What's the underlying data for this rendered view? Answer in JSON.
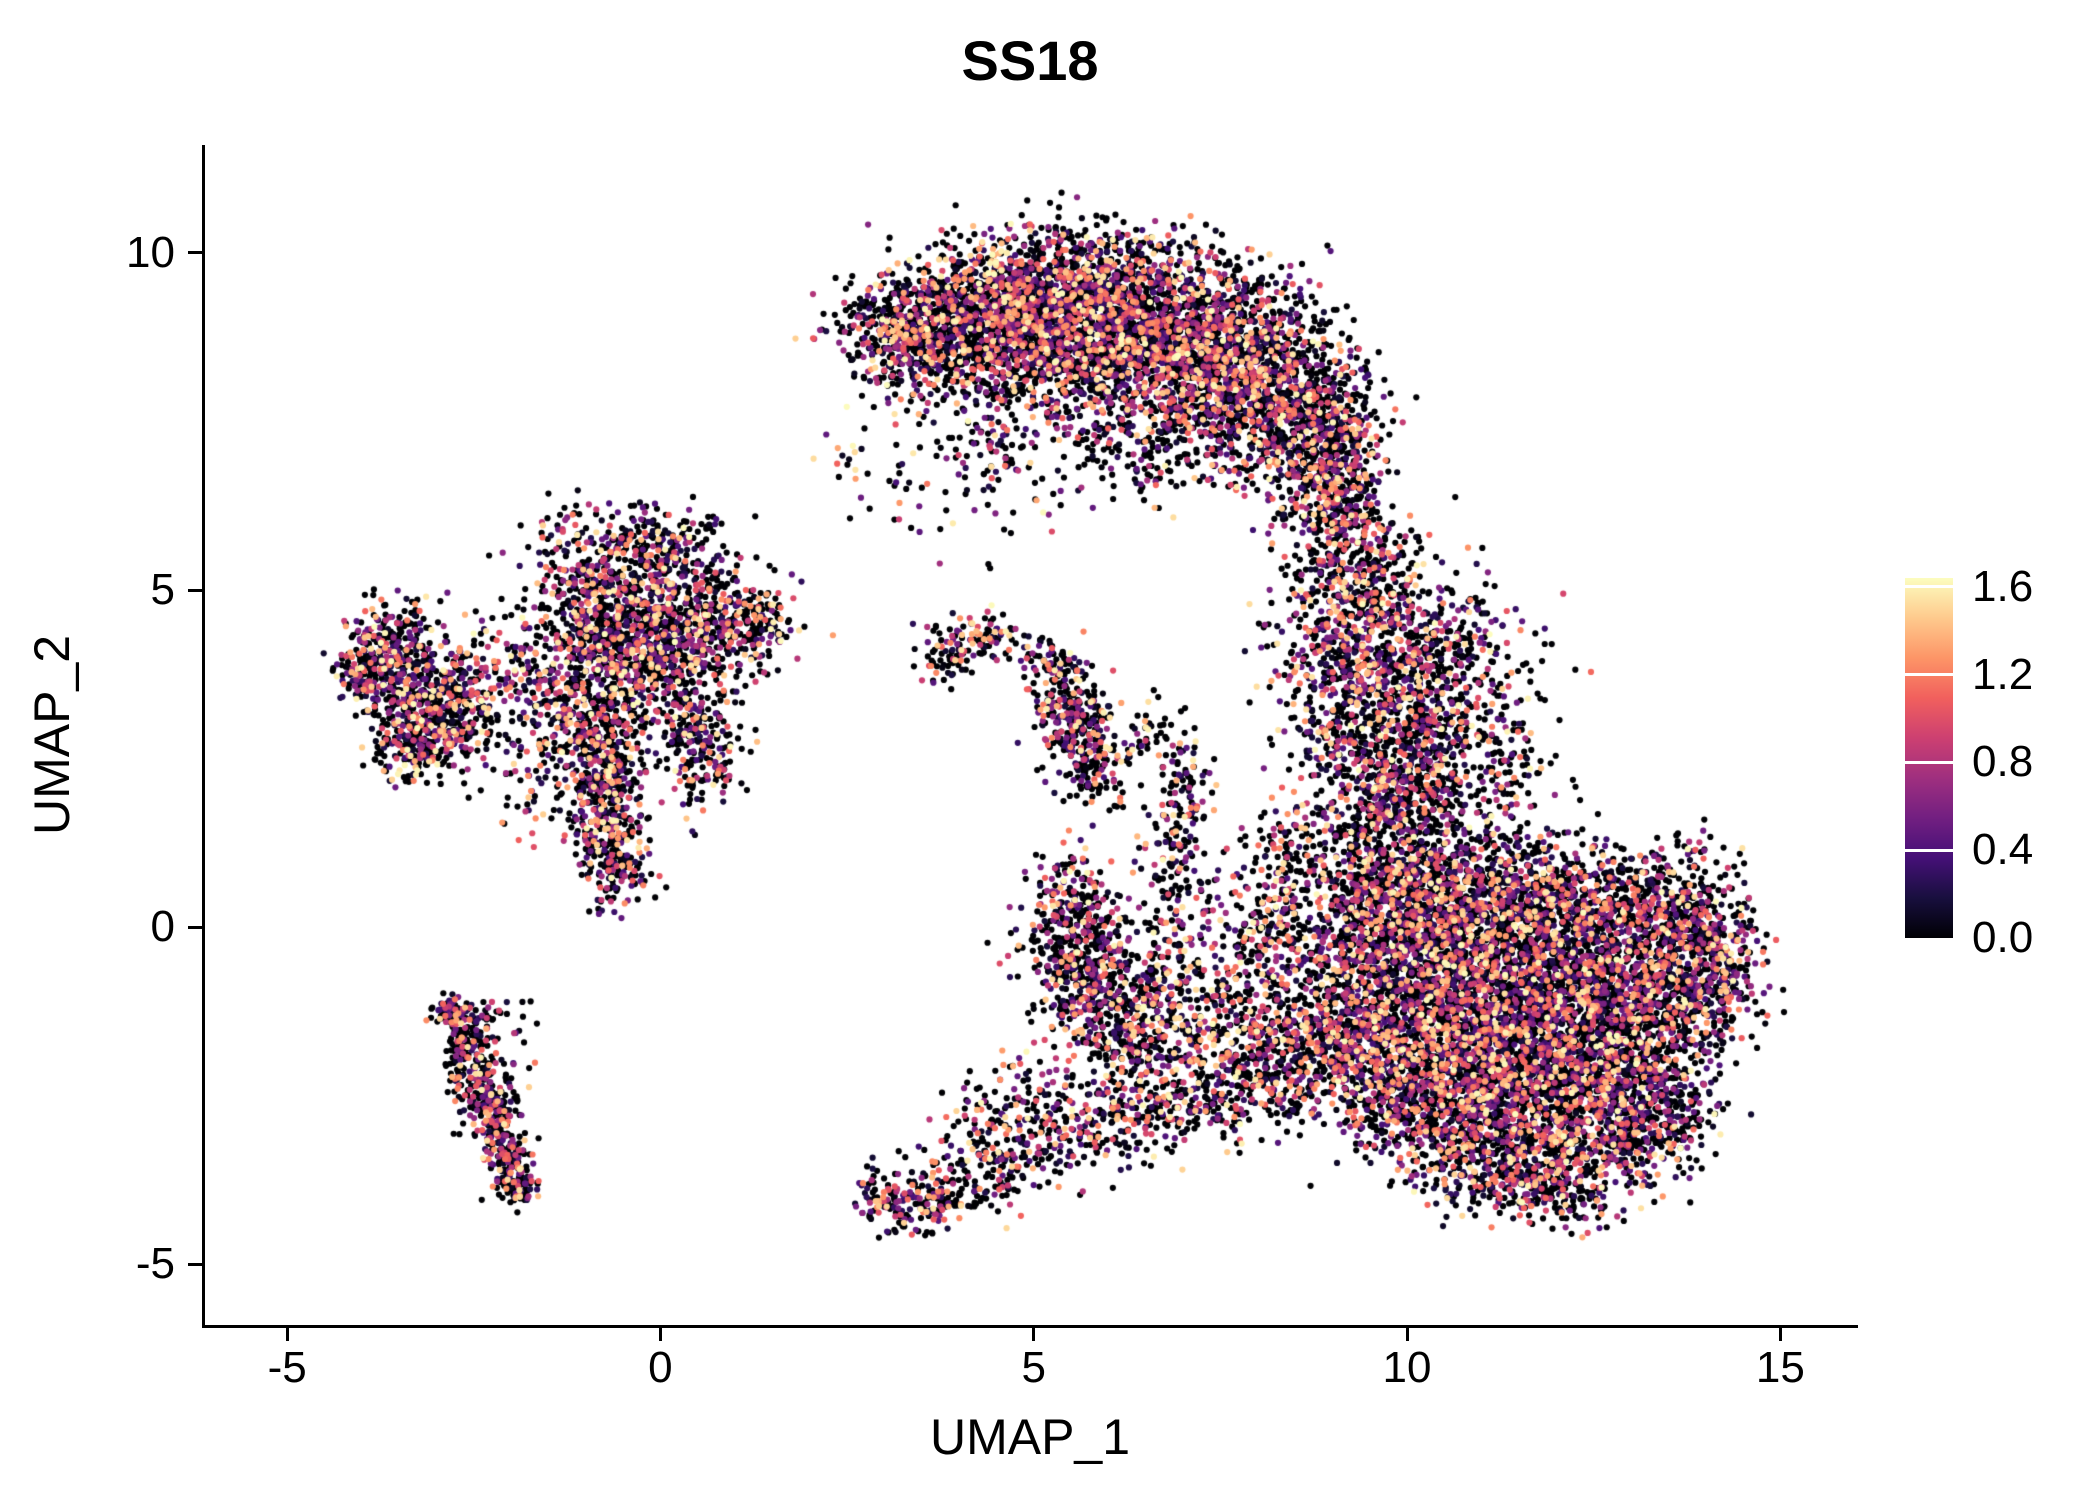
{
  "title": "SS18",
  "axes": {
    "x": {
      "label": "UMAP_1",
      "tick_labels": [
        "-5",
        "0",
        "5",
        "10",
        "15"
      ],
      "tick_values": [
        -5,
        0,
        5,
        10,
        15
      ]
    },
    "y": {
      "label": "UMAP_2",
      "tick_labels": [
        "-5",
        "0",
        "5",
        "10"
      ],
      "tick_values": [
        -5,
        0,
        5,
        10
      ]
    }
  },
  "colorbar": {
    "tick_labels": [
      "1.6",
      "1.2",
      "0.8",
      "0.4",
      "0.0"
    ],
    "tick_values": [
      1.6,
      1.2,
      0.8,
      0.4,
      0.0
    ],
    "max_value": 1.64
  },
  "chart_data": {
    "type": "scatter",
    "title": "SS18",
    "xlabel": "UMAP_1",
    "ylabel": "UMAP_2",
    "xlim": [
      -6.1,
      16.0
    ],
    "ylim": [
      -5.9,
      11.6
    ],
    "legend_position": "right",
    "grid": false,
    "color_scale": {
      "name": "magma",
      "domain": [
        0,
        1.65
      ],
      "stops": [
        "#000004",
        "#180f3e",
        "#451077",
        "#721f81",
        "#9f2f7f",
        "#cd4071",
        "#f1605d",
        "#fd9567",
        "#feca8d",
        "#fcfdbf"
      ]
    },
    "point_radius_px": 3.1,
    "seed": 20240612,
    "value_distribution": {
      "zero_fraction": 0.48,
      "exponent": 1.4,
      "vmax": 1.65
    },
    "cluster_fields": [
      "cx",
      "cy",
      "sx",
      "sy",
      "n"
    ],
    "clusters": [
      [
        3.2,
        8.8,
        0.45,
        0.4,
        350
      ],
      [
        3.9,
        9.1,
        0.5,
        0.45,
        450
      ],
      [
        4.7,
        9.35,
        0.55,
        0.45,
        600
      ],
      [
        5.6,
        9.4,
        0.6,
        0.5,
        700
      ],
      [
        6.5,
        9.1,
        0.6,
        0.55,
        700
      ],
      [
        7.4,
        8.7,
        0.55,
        0.6,
        650
      ],
      [
        8.2,
        8.2,
        0.5,
        0.65,
        600
      ],
      [
        8.8,
        7.4,
        0.4,
        0.6,
        450
      ],
      [
        9.0,
        6.5,
        0.35,
        0.5,
        300
      ],
      [
        6.0,
        8.5,
        0.7,
        0.5,
        350
      ],
      [
        7.0,
        8.0,
        0.6,
        0.5,
        300
      ],
      [
        5.0,
        8.6,
        0.5,
        0.45,
        250
      ],
      [
        4.2,
        8.3,
        0.5,
        0.4,
        150
      ],
      [
        5.6,
        7.9,
        0.7,
        0.5,
        180
      ],
      [
        6.6,
        7.1,
        0.5,
        0.45,
        120
      ],
      [
        7.8,
        7.2,
        0.4,
        0.4,
        120
      ],
      [
        4.4,
        7.1,
        0.35,
        0.45,
        70
      ],
      [
        3.4,
        8.1,
        0.3,
        0.35,
        60
      ],
      [
        5.2,
        6.6,
        0.8,
        0.5,
        40
      ],
      [
        9.3,
        5.6,
        0.35,
        0.5,
        180
      ],
      [
        9.6,
        4.7,
        0.45,
        0.55,
        280
      ],
      [
        9.8,
        3.8,
        0.55,
        0.55,
        350
      ],
      [
        10.0,
        2.9,
        0.55,
        0.5,
        330
      ],
      [
        10.1,
        2.1,
        0.5,
        0.45,
        280
      ],
      [
        10.9,
        3.4,
        0.5,
        0.7,
        150
      ],
      [
        9.1,
        2.9,
        0.35,
        0.6,
        150
      ],
      [
        10.6,
        4.6,
        0.5,
        0.5,
        80
      ],
      [
        11.3,
        2.3,
        0.4,
        0.5,
        90
      ],
      [
        9.0,
        4.6,
        0.3,
        0.5,
        90
      ],
      [
        9.6,
        0.9,
        0.45,
        0.55,
        280
      ],
      [
        9.3,
        -0.2,
        0.5,
        0.6,
        350
      ],
      [
        10.2,
        0.3,
        0.6,
        0.6,
        500
      ],
      [
        11.0,
        0.5,
        0.7,
        0.5,
        500
      ],
      [
        12.0,
        0.3,
        0.7,
        0.5,
        450
      ],
      [
        13.0,
        0.1,
        0.6,
        0.5,
        400
      ],
      [
        13.9,
        0.0,
        0.4,
        0.6,
        300
      ],
      [
        14.2,
        -0.6,
        0.3,
        0.5,
        200
      ],
      [
        10.5,
        -0.7,
        0.7,
        0.6,
        600
      ],
      [
        11.5,
        -0.8,
        0.8,
        0.6,
        700
      ],
      [
        12.5,
        -1.0,
        0.7,
        0.6,
        600
      ],
      [
        13.4,
        -1.2,
        0.55,
        0.55,
        450
      ],
      [
        10.0,
        -1.7,
        0.6,
        0.55,
        450
      ],
      [
        11.0,
        -1.9,
        0.7,
        0.55,
        600
      ],
      [
        12.0,
        -2.1,
        0.7,
        0.55,
        550
      ],
      [
        13.0,
        -2.3,
        0.55,
        0.5,
        400
      ],
      [
        10.5,
        -2.8,
        0.6,
        0.45,
        350
      ],
      [
        11.5,
        -3.0,
        0.65,
        0.45,
        400
      ],
      [
        12.5,
        -3.2,
        0.55,
        0.4,
        300
      ],
      [
        11.0,
        -3.7,
        0.5,
        0.3,
        180
      ],
      [
        12.0,
        -3.9,
        0.45,
        0.28,
        150
      ],
      [
        13.3,
        -3.0,
        0.35,
        0.35,
        150
      ],
      [
        9.5,
        -2.3,
        0.5,
        0.5,
        250
      ],
      [
        9.0,
        -1.4,
        0.45,
        0.5,
        250
      ],
      [
        9.7,
        1.6,
        0.4,
        0.4,
        120
      ],
      [
        8.5,
        -1.9,
        0.5,
        0.5,
        220
      ],
      [
        7.8,
        -2.2,
        0.45,
        0.4,
        180
      ],
      [
        7.0,
        -2.5,
        0.5,
        0.35,
        160
      ],
      [
        6.2,
        -2.8,
        0.45,
        0.3,
        130
      ],
      [
        5.4,
        -3.1,
        0.45,
        0.3,
        110
      ],
      [
        4.6,
        -3.5,
        0.45,
        0.3,
        110
      ],
      [
        3.9,
        -3.9,
        0.4,
        0.28,
        110
      ],
      [
        3.3,
        -4.2,
        0.3,
        0.22,
        90
      ],
      [
        2.9,
        -3.9,
        0.15,
        0.25,
        40
      ],
      [
        5.5,
        0.3,
        0.3,
        0.45,
        180
      ],
      [
        5.6,
        -0.4,
        0.35,
        0.45,
        250
      ],
      [
        5.9,
        -1.1,
        0.4,
        0.4,
        220
      ],
      [
        6.4,
        -1.7,
        0.4,
        0.35,
        160
      ],
      [
        6.6,
        -0.7,
        0.45,
        0.5,
        140
      ],
      [
        7.2,
        -1.2,
        0.45,
        0.5,
        130
      ],
      [
        7.9,
        -0.7,
        0.3,
        0.6,
        130
      ],
      [
        8.2,
        0.3,
        0.3,
        0.55,
        120
      ],
      [
        8.5,
        1.2,
        0.3,
        0.45,
        100
      ],
      [
        7.0,
        0.2,
        0.35,
        0.5,
        80
      ],
      [
        6.9,
        1.2,
        0.2,
        0.5,
        80
      ],
      [
        7.0,
        2.1,
        0.18,
        0.4,
        70
      ],
      [
        6.6,
        2.9,
        0.25,
        0.3,
        40
      ],
      [
        4.3,
        4.25,
        0.35,
        0.2,
        100
      ],
      [
        3.8,
        4.0,
        0.2,
        0.25,
        50
      ],
      [
        5.2,
        3.9,
        0.2,
        0.2,
        60
      ],
      [
        5.5,
        3.3,
        0.22,
        0.35,
        160
      ],
      [
        5.6,
        2.7,
        0.25,
        0.35,
        140
      ],
      [
        5.9,
        2.2,
        0.2,
        0.25,
        60
      ],
      [
        -3.6,
        4.2,
        0.3,
        0.35,
        220
      ],
      [
        -3.9,
        3.8,
        0.2,
        0.3,
        120
      ],
      [
        -3.3,
        3.5,
        0.35,
        0.4,
        250
      ],
      [
        -3.0,
        2.9,
        0.3,
        0.35,
        200
      ],
      [
        -3.4,
        2.7,
        0.25,
        0.25,
        120
      ],
      [
        -2.6,
        3.3,
        0.3,
        0.4,
        120
      ],
      [
        -2.2,
        3.9,
        0.4,
        0.4,
        100
      ],
      [
        -1.6,
        3.3,
        0.3,
        0.4,
        70
      ],
      [
        -1.1,
        4.2,
        0.4,
        0.5,
        180
      ],
      [
        -0.5,
        4.5,
        0.5,
        0.5,
        280
      ],
      [
        0.1,
        4.7,
        0.5,
        0.45,
        280
      ],
      [
        0.7,
        4.5,
        0.45,
        0.4,
        220
      ],
      [
        1.3,
        4.5,
        0.3,
        0.3,
        120
      ],
      [
        -0.3,
        5.4,
        0.5,
        0.4,
        130
      ],
      [
        0.3,
        5.6,
        0.35,
        0.3,
        80
      ],
      [
        -0.9,
        5.0,
        0.35,
        0.35,
        100
      ],
      [
        -0.6,
        3.8,
        0.4,
        0.45,
        220
      ],
      [
        0.1,
        3.7,
        0.45,
        0.4,
        180
      ],
      [
        -1.0,
        3.1,
        0.3,
        0.4,
        150
      ],
      [
        -0.8,
        2.4,
        0.28,
        0.45,
        200
      ],
      [
        -0.7,
        1.6,
        0.25,
        0.45,
        190
      ],
      [
        -0.6,
        0.9,
        0.25,
        0.35,
        140
      ],
      [
        0.4,
        2.9,
        0.3,
        0.3,
        130
      ],
      [
        0.6,
        2.3,
        0.25,
        0.3,
        90
      ],
      [
        -1.6,
        2.3,
        0.35,
        0.4,
        60
      ],
      [
        -1.3,
        5.8,
        0.3,
        0.25,
        50
      ],
      [
        -0.2,
        5.9,
        0.25,
        0.2,
        40
      ],
      [
        -2.65,
        -1.5,
        0.22,
        0.22,
        90
      ],
      [
        -2.5,
        -2.0,
        0.18,
        0.3,
        110
      ],
      [
        -2.3,
        -2.6,
        0.18,
        0.3,
        120
      ],
      [
        -2.15,
        -3.1,
        0.15,
        0.28,
        110
      ],
      [
        -2.0,
        -3.55,
        0.14,
        0.25,
        90
      ],
      [
        -1.9,
        -3.85,
        0.12,
        0.15,
        50
      ],
      [
        -2.8,
        -1.25,
        0.12,
        0.15,
        40
      ],
      [
        -2.3,
        -1.8,
        0.4,
        0.4,
        40
      ],
      [
        5.0,
        -2.4,
        0.4,
        0.35,
        60
      ],
      [
        4.4,
        -2.9,
        0.35,
        0.3,
        50
      ],
      [
        2.8,
        6.9,
        0.5,
        0.5,
        25
      ],
      [
        3.6,
        6.2,
        0.4,
        0.4,
        20
      ],
      [
        8.6,
        4.4,
        0.4,
        0.6,
        60
      ],
      [
        8.8,
        3.4,
        0.3,
        0.5,
        50
      ]
    ]
  }
}
